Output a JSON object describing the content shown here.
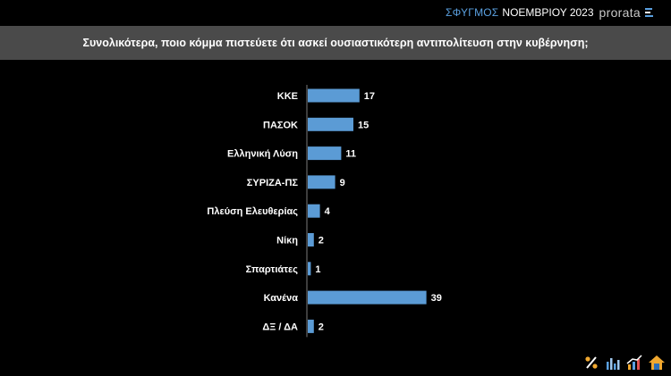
{
  "header": {
    "series_label": "ΣΦΥΓΜΟΣ",
    "month_label": "ΝΟΕΜΒΡΙΟΥ 2023",
    "logo_text": "prorata"
  },
  "banner": {
    "question": "Συνολικότερα, ποιο κόμμα πιστεύετε ότι ασκεί ουσιαστικότερη αντιπολίτευση στην κυβέρνηση;"
  },
  "colors": {
    "bar": "#5b9bd5",
    "banner_bg": "#4a4a4a",
    "accent_blue": "#5aa0e0"
  },
  "chart_data": {
    "type": "bar",
    "orientation": "horizontal",
    "categories": [
      "ΚΚΕ",
      "ΠΑΣΟΚ",
      "Ελληνική Λύση",
      "ΣΥΡΙΖΑ-ΠΣ",
      "Πλεύση Ελευθερίας",
      "Νίκη",
      "Σπαρτιάτες",
      "Κανένα",
      "ΔΞ / ΔΑ"
    ],
    "values": [
      17,
      15,
      11,
      9,
      4,
      2,
      1,
      39,
      2
    ],
    "title": "Συνολικότερα, ποιο κόμμα πιστεύετε ότι ασκεί ουσιαστικότερη αντιπολίτευση στην κυβέρνηση;",
    "xlabel": "",
    "ylabel": "",
    "grid": false,
    "legend": "none",
    "data_labels": true
  },
  "footer_icons": [
    "percent-icon",
    "bar-chart-icon",
    "growth-chart-icon",
    "house-icon"
  ]
}
